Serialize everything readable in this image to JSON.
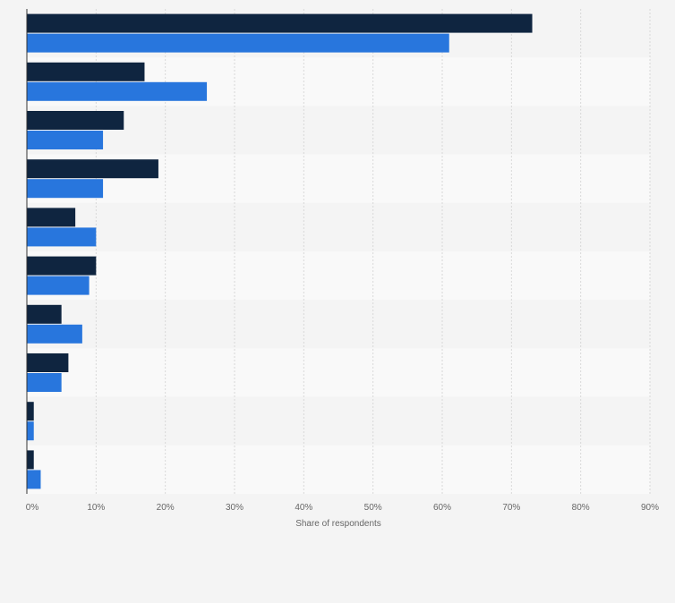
{
  "chart_data": {
    "type": "bar",
    "orientation": "horizontal",
    "categories": [
      "",
      "",
      "",
      "",
      "",
      "",
      "",
      "",
      "",
      ""
    ],
    "series": [
      {
        "color": "#0f2540",
        "values": [
          73,
          17,
          14,
          19,
          7,
          10,
          5,
          6,
          1,
          1
        ]
      },
      {
        "color": "#2876dd",
        "values": [
          61,
          26,
          11,
          11,
          10,
          9,
          8,
          5,
          1,
          2
        ]
      }
    ],
    "xlabel": "Share of respondents",
    "xlim": [
      0,
      90
    ],
    "ticks": [
      0,
      10,
      20,
      30,
      40,
      50,
      60,
      70,
      80,
      90
    ],
    "tick_labels": [
      "0%",
      "10%",
      "20%",
      "30%",
      "40%",
      "50%",
      "60%",
      "70%",
      "80%",
      "90%"
    ],
    "grid": true,
    "band_colors": [
      "#f4f4f4",
      "#f9f9f9"
    ]
  }
}
